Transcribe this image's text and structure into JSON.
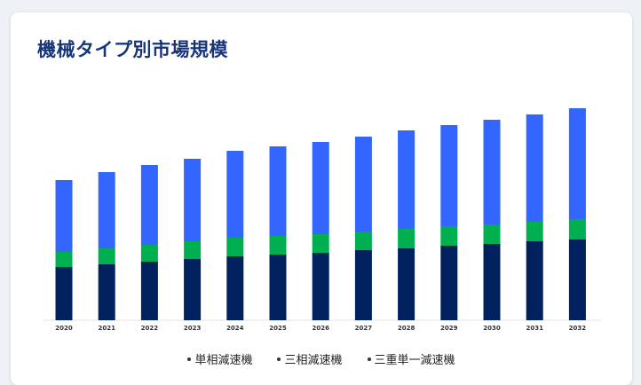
{
  "chart_data": {
    "type": "bar",
    "stacked": true,
    "title": "機械タイプ別市場規模",
    "categories": [
      "2020",
      "2021",
      "2022",
      "2023",
      "2024",
      "2025",
      "2026",
      "2027",
      "2028",
      "2029",
      "2030",
      "2031",
      "2032"
    ],
    "series": [
      {
        "name": "単相減速機",
        "color": "#00215e",
        "values": [
          60,
          63,
          66,
          69,
          72,
          74,
          76,
          79,
          81,
          84,
          86,
          89,
          91
        ]
      },
      {
        "name": "三相減速機",
        "color": "#00b050",
        "values": [
          17,
          18,
          19,
          20,
          21,
          21,
          21,
          21,
          22,
          22,
          22,
          22,
          23
        ]
      },
      {
        "name": "三重単一減速機",
        "color": "#3366ff",
        "values": [
          81,
          86,
          90,
          93,
          98,
          101,
          104,
          107,
          111,
          114,
          118,
          121,
          125
        ]
      }
    ],
    "legend_position": "bottom",
    "grid": false
  }
}
